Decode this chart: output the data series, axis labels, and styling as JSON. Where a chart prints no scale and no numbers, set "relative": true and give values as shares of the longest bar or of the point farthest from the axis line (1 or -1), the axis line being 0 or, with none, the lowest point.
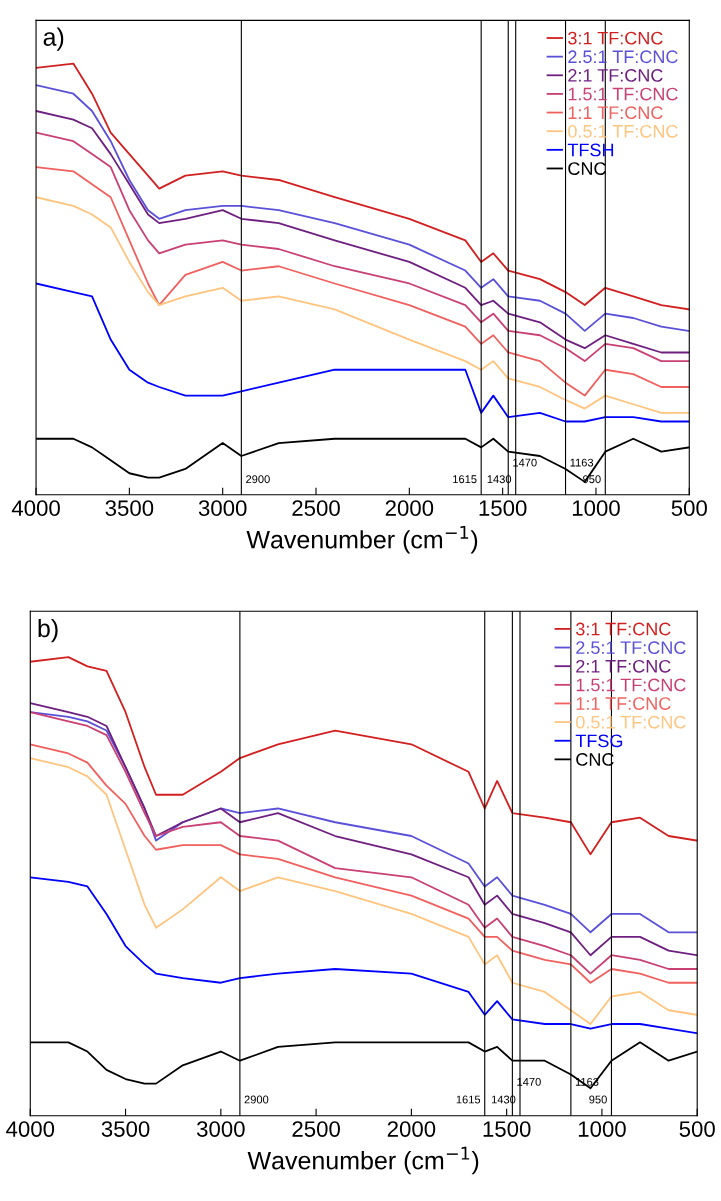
{
  "chart_data": [
    {
      "type": "line",
      "title": "a)",
      "xlabel": "Wavenumber (cm$^{−1}$)",
      "relative": true,
      "legend": "top right",
      "grid": false,
      "tick_labels": "x",
      "x": [
        4000,
        3800,
        3700,
        3600,
        3500,
        3400,
        3340,
        3200,
        3000,
        2900,
        2700,
        2400,
        2000,
        1700,
        1615,
        1550,
        1470,
        1300,
        1163,
        1060,
        950,
        800,
        650,
        500
      ],
      "xlim": [
        4000,
        500
      ],
      "xticks": [
        4000,
        3500,
        3000,
        2500,
        2000,
        1500,
        1000,
        500
      ],
      "series": [
        {
          "name": "3:1 TF:CNC",
          "color": "#d21f1f",
          "values": [
            0.99,
            1.0,
            0.93,
            0.84,
            0.79,
            0.74,
            0.71,
            0.74,
            0.75,
            0.74,
            0.73,
            0.69,
            0.64,
            0.59,
            0.54,
            0.56,
            0.52,
            0.5,
            0.47,
            0.44,
            0.48,
            0.46,
            0.44,
            0.43
          ]
        },
        {
          "name": "2.5:1 TF:CNC",
          "color": "#5b50d8",
          "values": [
            0.95,
            0.93,
            0.89,
            0.82,
            0.73,
            0.66,
            0.64,
            0.66,
            0.67,
            0.67,
            0.66,
            0.63,
            0.58,
            0.52,
            0.48,
            0.5,
            0.46,
            0.45,
            0.42,
            0.38,
            0.42,
            0.41,
            0.39,
            0.38
          ]
        },
        {
          "name": "2:1 TF:CNC",
          "color": "#6e1f80",
          "values": [
            0.89,
            0.87,
            0.85,
            0.79,
            0.72,
            0.65,
            0.63,
            0.64,
            0.66,
            0.64,
            0.63,
            0.59,
            0.54,
            0.48,
            0.44,
            0.45,
            0.42,
            0.4,
            0.36,
            0.34,
            0.37,
            0.35,
            0.33,
            0.33
          ]
        },
        {
          "name": "1.5:1 TF:CNC",
          "color": "#c94072",
          "values": [
            0.84,
            0.82,
            0.79,
            0.76,
            0.66,
            0.59,
            0.56,
            0.58,
            0.59,
            0.58,
            0.57,
            0.53,
            0.49,
            0.44,
            0.4,
            0.42,
            0.38,
            0.37,
            0.34,
            0.31,
            0.35,
            0.34,
            0.31,
            0.31
          ]
        },
        {
          "name": "1:1 TF:CNC",
          "color": "#f0605e",
          "values": [
            0.76,
            0.75,
            0.72,
            0.69,
            0.59,
            0.49,
            0.44,
            0.51,
            0.54,
            0.52,
            0.53,
            0.49,
            0.44,
            0.39,
            0.35,
            0.37,
            0.33,
            0.31,
            0.26,
            0.23,
            0.29,
            0.28,
            0.25,
            0.25
          ]
        },
        {
          "name": "0.5:1 TF:CNC",
          "color": "#ffc47e",
          "values": [
            0.69,
            0.67,
            0.65,
            0.62,
            0.54,
            0.47,
            0.44,
            0.46,
            0.48,
            0.45,
            0.46,
            0.43,
            0.36,
            0.31,
            0.29,
            0.31,
            0.27,
            0.25,
            0.22,
            0.2,
            0.23,
            0.21,
            0.19,
            0.19
          ]
        },
        {
          "name": "TFSH",
          "color": "#0000ff",
          "values": [
            0.49,
            0.47,
            0.46,
            0.36,
            0.29,
            0.26,
            0.25,
            0.23,
            0.23,
            0.24,
            0.26,
            0.29,
            0.29,
            0.29,
            0.19,
            0.23,
            0.18,
            0.19,
            0.17,
            0.17,
            0.18,
            0.18,
            0.17,
            0.17
          ]
        },
        {
          "name": "CNC",
          "color": "#000000",
          "values": [
            0.13,
            0.13,
            0.11,
            0.08,
            0.05,
            0.04,
            0.04,
            0.06,
            0.12,
            0.09,
            0.12,
            0.13,
            0.13,
            0.13,
            0.11,
            0.13,
            0.1,
            0.09,
            0.06,
            0.03,
            0.1,
            0.13,
            0.1,
            0.11
          ]
        }
      ],
      "ref_lines": [
        {
          "axis": "x",
          "value": 2900,
          "label": "2900"
        },
        {
          "axis": "x",
          "value": 1615,
          "label": "1615"
        },
        {
          "axis": "x",
          "value": 1470,
          "label": "1470"
        },
        {
          "axis": "x",
          "value": 1430,
          "label": "1430"
        },
        {
          "axis": "x",
          "value": 1163,
          "label": "1163"
        },
        {
          "axis": "x",
          "value": 950,
          "label": "950"
        }
      ]
    },
    {
      "type": "line",
      "title": "b)",
      "xlabel": "Wavenumber (cm$^{−1}$)",
      "relative": true,
      "legend": "top right",
      "grid": false,
      "tick_labels": "x",
      "x": [
        4000,
        3800,
        3700,
        3600,
        3500,
        3400,
        3340,
        3200,
        3000,
        2900,
        2700,
        2400,
        2000,
        1700,
        1615,
        1550,
        1470,
        1300,
        1163,
        1060,
        950,
        800,
        650,
        500
      ],
      "xlim": [
        4000,
        500
      ],
      "xticks": [
        4000,
        3500,
        3000,
        2500,
        2000,
        1500,
        1000,
        500
      ],
      "series": [
        {
          "name": "3:1 TF:CNC",
          "color": "#d21f1f",
          "values": [
            0.99,
            1.0,
            0.98,
            0.97,
            0.88,
            0.76,
            0.7,
            0.7,
            0.75,
            0.78,
            0.81,
            0.84,
            0.81,
            0.75,
            0.67,
            0.73,
            0.66,
            0.65,
            0.64,
            0.57,
            0.64,
            0.65,
            0.61,
            0.6
          ]
        },
        {
          "name": "2.5:1 TF:CNC",
          "color": "#5b50d8",
          "values": [
            0.88,
            0.87,
            0.86,
            0.84,
            0.76,
            0.67,
            0.6,
            0.64,
            0.67,
            0.66,
            0.67,
            0.64,
            0.61,
            0.55,
            0.5,
            0.52,
            0.48,
            0.46,
            0.44,
            0.4,
            0.44,
            0.44,
            0.4,
            0.4
          ]
        },
        {
          "name": "2:1 TF:CNC",
          "color": "#6e1f80",
          "values": [
            0.9,
            0.88,
            0.87,
            0.85,
            0.76,
            0.67,
            0.61,
            0.64,
            0.67,
            0.64,
            0.66,
            0.61,
            0.57,
            0.52,
            0.46,
            0.48,
            0.44,
            0.42,
            0.4,
            0.35,
            0.39,
            0.39,
            0.36,
            0.35
          ]
        },
        {
          "name": "1.5:1 TF:CNC",
          "color": "#c94072",
          "values": [
            0.88,
            0.86,
            0.85,
            0.83,
            0.75,
            0.66,
            0.61,
            0.63,
            0.64,
            0.61,
            0.6,
            0.54,
            0.52,
            0.46,
            0.41,
            0.43,
            0.39,
            0.37,
            0.35,
            0.31,
            0.35,
            0.34,
            0.32,
            0.32
          ]
        },
        {
          "name": "1:1 TF:CNC",
          "color": "#f0605e",
          "values": [
            0.81,
            0.79,
            0.77,
            0.72,
            0.68,
            0.61,
            0.58,
            0.59,
            0.59,
            0.57,
            0.56,
            0.52,
            0.48,
            0.43,
            0.39,
            0.39,
            0.36,
            0.34,
            0.33,
            0.29,
            0.32,
            0.31,
            0.29,
            0.29
          ]
        },
        {
          "name": "0.5:1 TF:CNC",
          "color": "#ffc47e",
          "values": [
            0.78,
            0.76,
            0.74,
            0.7,
            0.58,
            0.46,
            0.41,
            0.45,
            0.52,
            0.49,
            0.52,
            0.49,
            0.44,
            0.39,
            0.33,
            0.35,
            0.29,
            0.27,
            0.23,
            0.2,
            0.26,
            0.27,
            0.23,
            0.22
          ]
        },
        {
          "name": "TFSG",
          "color": "#0000ff",
          "values": [
            0.52,
            0.51,
            0.5,
            0.44,
            0.37,
            0.33,
            0.31,
            0.3,
            0.29,
            0.3,
            0.31,
            0.32,
            0.31,
            0.27,
            0.22,
            0.25,
            0.21,
            0.2,
            0.2,
            0.19,
            0.2,
            0.2,
            0.19,
            0.18
          ]
        },
        {
          "name": "CNC",
          "color": "#000000",
          "values": [
            0.16,
            0.16,
            0.14,
            0.1,
            0.08,
            0.07,
            0.07,
            0.11,
            0.14,
            0.12,
            0.15,
            0.16,
            0.16,
            0.16,
            0.14,
            0.15,
            0.12,
            0.12,
            0.09,
            0.06,
            0.12,
            0.16,
            0.12,
            0.14
          ]
        }
      ],
      "ref_lines": [
        {
          "axis": "x",
          "value": 2900,
          "label": "2900"
        },
        {
          "axis": "x",
          "value": 1615,
          "label": "1615"
        },
        {
          "axis": "x",
          "value": 1470,
          "label": "1470"
        },
        {
          "axis": "x",
          "value": 1430,
          "label": "1430"
        },
        {
          "axis": "x",
          "value": 1163,
          "label": "1163"
        },
        {
          "axis": "x",
          "value": 950,
          "label": "950"
        }
      ]
    }
  ]
}
